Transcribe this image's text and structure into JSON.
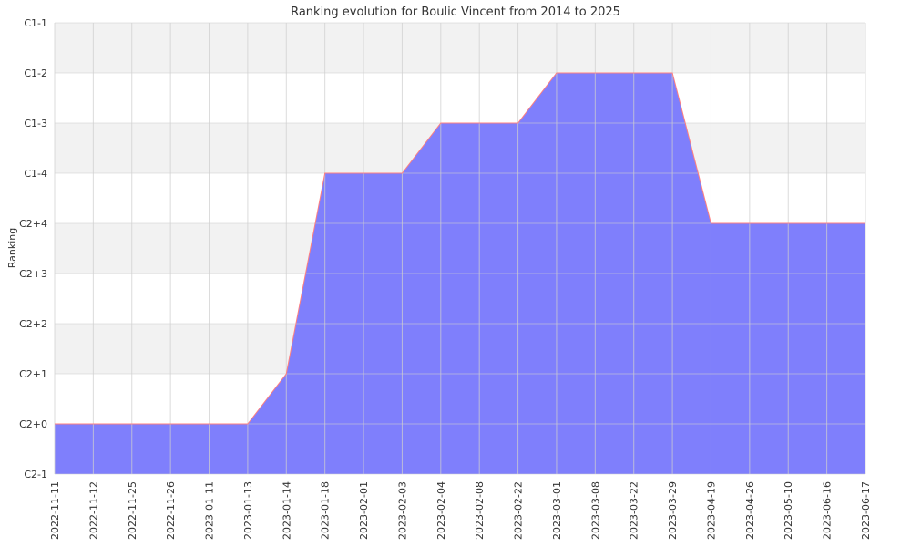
{
  "chart_data": {
    "type": "area",
    "title": "Ranking evolution for Boulic Vincent from 2014 to 2025",
    "xlabel": "",
    "ylabel": "Ranking",
    "y_categories": [
      "C2-1",
      "C2+0",
      "C2+1",
      "C2+2",
      "C2+3",
      "C2+4",
      "C1-4",
      "C1-3",
      "C1-2",
      "C1-1"
    ],
    "x": [
      "2022-11-11",
      "2022-11-12",
      "2022-11-25",
      "2022-11-26",
      "2023-01-11",
      "2023-01-13",
      "2023-01-14",
      "2023-01-18",
      "2023-02-01",
      "2023-02-03",
      "2023-02-04",
      "2023-02-08",
      "2023-02-22",
      "2023-03-01",
      "2023-03-08",
      "2023-03-22",
      "2023-03-29",
      "2023-04-19",
      "2023-04-26",
      "2023-05-10",
      "2023-06-16",
      "2023-06-17"
    ],
    "series": [
      {
        "values": [
          "C2+0",
          "C2+0",
          "C2+0",
          "C2+0",
          "C2+0",
          "C2+0",
          "C2+1",
          "C1-4",
          "C1-4",
          "C1-4",
          "C1-3",
          "C1-3",
          "C1-3",
          "C1-2",
          "C1-2",
          "C1-2",
          "C1-2",
          "C2+4",
          "C2+4",
          "C2+4",
          "C2+4",
          "C2+4"
        ]
      }
    ],
    "grid": true,
    "colors": {
      "fill": "#7f7ffc",
      "line": "#ff7f7f",
      "band": "#f2f2f2",
      "grid": "#cfcfcf"
    }
  }
}
